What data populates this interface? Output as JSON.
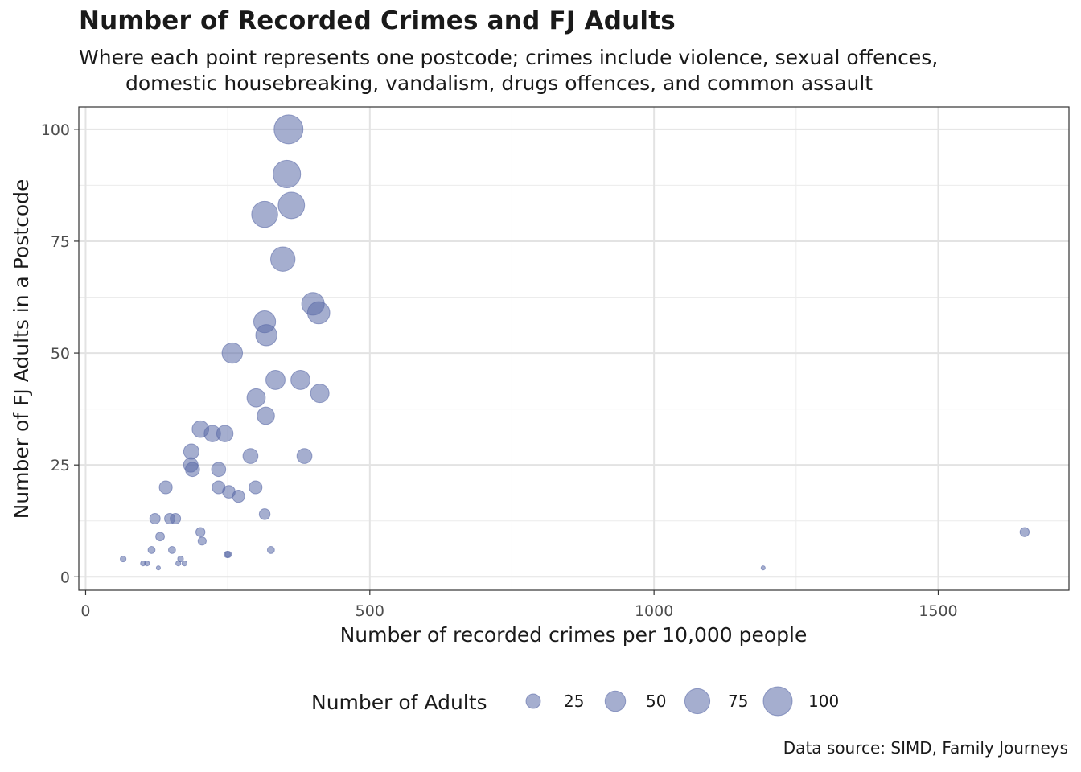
{
  "chart_data": {
    "type": "scatter",
    "title": "Number of Recorded Crimes and FJ Adults",
    "subtitle_line1": "Where each point represents one postcode; crimes include violence, sexual offences,",
    "subtitle_line2": "domestic housebreaking, vandalism, drugs offences, and common assault",
    "xlabel": "Number of recorded crimes per 10,000 people",
    "ylabel": "Number of FJ Adults in a Postcode",
    "xlim": [
      -12,
      1730
    ],
    "ylim": [
      -3,
      105
    ],
    "x_ticks": [
      0,
      500,
      1000,
      1500
    ],
    "y_ticks": [
      0,
      25,
      50,
      75,
      100
    ],
    "grid": true,
    "point_color": "#5b6ba8",
    "size_legend": {
      "title": "Number of Adults",
      "values": [
        25,
        50,
        75,
        100
      ],
      "labels": [
        "25",
        "50",
        "75",
        "100"
      ],
      "position": "bottom"
    },
    "points": [
      {
        "x": 357,
        "y": 100
      },
      {
        "x": 354,
        "y": 90
      },
      {
        "x": 362,
        "y": 83
      },
      {
        "x": 315,
        "y": 81
      },
      {
        "x": 347,
        "y": 71
      },
      {
        "x": 400,
        "y": 61
      },
      {
        "x": 410,
        "y": 59
      },
      {
        "x": 315,
        "y": 57
      },
      {
        "x": 318,
        "y": 54
      },
      {
        "x": 258,
        "y": 50
      },
      {
        "x": 334,
        "y": 44
      },
      {
        "x": 378,
        "y": 44
      },
      {
        "x": 412,
        "y": 41
      },
      {
        "x": 300,
        "y": 40
      },
      {
        "x": 317,
        "y": 36
      },
      {
        "x": 202,
        "y": 33
      },
      {
        "x": 223,
        "y": 32
      },
      {
        "x": 245,
        "y": 32
      },
      {
        "x": 186,
        "y": 28
      },
      {
        "x": 290,
        "y": 27
      },
      {
        "x": 385,
        "y": 27
      },
      {
        "x": 185,
        "y": 25
      },
      {
        "x": 188,
        "y": 24
      },
      {
        "x": 234,
        "y": 24
      },
      {
        "x": 141,
        "y": 20
      },
      {
        "x": 234,
        "y": 20
      },
      {
        "x": 299,
        "y": 20
      },
      {
        "x": 252,
        "y": 19
      },
      {
        "x": 269,
        "y": 18
      },
      {
        "x": 315,
        "y": 14
      },
      {
        "x": 122,
        "y": 13
      },
      {
        "x": 148,
        "y": 13
      },
      {
        "x": 158,
        "y": 13
      },
      {
        "x": 202,
        "y": 10
      },
      {
        "x": 131,
        "y": 9
      },
      {
        "x": 205,
        "y": 8
      },
      {
        "x": 116,
        "y": 6
      },
      {
        "x": 152,
        "y": 6
      },
      {
        "x": 326,
        "y": 6
      },
      {
        "x": 249,
        "y": 5
      },
      {
        "x": 251,
        "y": 5
      },
      {
        "x": 66,
        "y": 4
      },
      {
        "x": 167,
        "y": 4
      },
      {
        "x": 101,
        "y": 3
      },
      {
        "x": 108,
        "y": 3
      },
      {
        "x": 163,
        "y": 3
      },
      {
        "x": 174,
        "y": 3
      },
      {
        "x": 128,
        "y": 2
      },
      {
        "x": 1192,
        "y": 2
      },
      {
        "x": 1652,
        "y": 10
      }
    ]
  },
  "caption": "Data source: SIMD, Family Journeys"
}
